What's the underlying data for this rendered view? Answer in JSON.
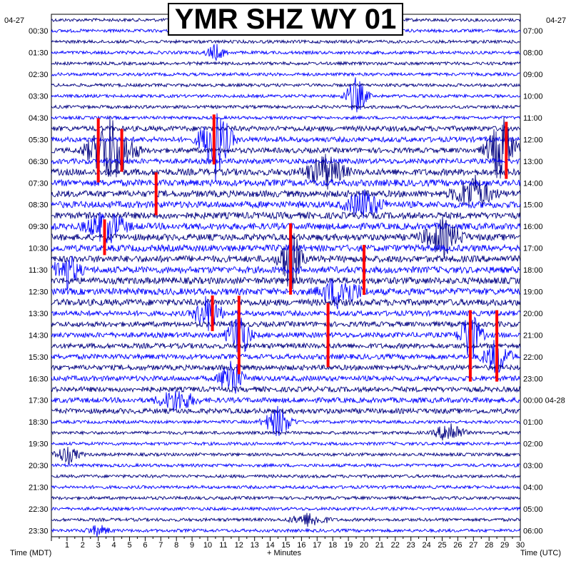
{
  "chart_data": {
    "type": "helicorder",
    "title": "YMR SHZ WY 01",
    "date_left": "04-27",
    "date_right": "04-27",
    "left_labels": [
      "00:30",
      "01:30",
      "02:30",
      "03:30",
      "04:30",
      "05:30",
      "06:30",
      "07:30",
      "08:30",
      "09:30",
      "10:30",
      "11:30",
      "12:30",
      "13:30",
      "14:30",
      "15:30",
      "16:30",
      "17:30",
      "18:30",
      "19:30",
      "20:30",
      "21:30",
      "22:30",
      "23:30"
    ],
    "right_labels": [
      "07:00",
      "08:00",
      "09:00",
      "10:00",
      "11:00",
      "12:00",
      "13:00",
      "14:00",
      "15:00",
      "16:00",
      "17:00",
      "18:00",
      "19:00",
      "20:00",
      "21:00",
      "22:00",
      "23:00",
      "00:00 04-28",
      "01:00",
      "02:00",
      "03:00",
      "04:00",
      "05:00",
      "06:00"
    ],
    "x_ticks": [
      1,
      2,
      3,
      4,
      5,
      6,
      7,
      8,
      9,
      10,
      11,
      12,
      13,
      14,
      15,
      16,
      17,
      18,
      19,
      20,
      21,
      22,
      23,
      24,
      25,
      26,
      27,
      28,
      29,
      30
    ],
    "xlabel": "+ Minutes",
    "xlabel_left": "Time (MDT)",
    "xlabel_right": "Time (UTC)",
    "xlim": [
      0,
      30
    ],
    "trace_count": 48,
    "minutes_per_trace": 30,
    "trace_colors": [
      "#000080",
      "#0000ff"
    ],
    "clip_color": "#ff0000",
    "events": [
      {
        "trace": 3,
        "minute": 10.5,
        "amp": 14,
        "dur": 1.5
      },
      {
        "trace": 7,
        "minute": 19.5,
        "amp": 30,
        "dur": 1.5
      },
      {
        "trace": 11,
        "minute": 10.5,
        "amp": 60,
        "dur": 2.0
      },
      {
        "trace": 12,
        "minute": 3.8,
        "amp": 55,
        "dur": 3.0
      },
      {
        "trace": 12,
        "minute": 28.8,
        "amp": 55,
        "dur": 2.0
      },
      {
        "trace": 14,
        "minute": 17.5,
        "amp": 30,
        "dur": 3.0
      },
      {
        "trace": 16,
        "minute": 27.0,
        "amp": 30,
        "dur": 3.0
      },
      {
        "trace": 17,
        "minute": 20.0,
        "amp": 25,
        "dur": 3.0
      },
      {
        "trace": 19,
        "minute": 3.5,
        "amp": 30,
        "dur": 3.0
      },
      {
        "trace": 20,
        "minute": 25.0,
        "amp": 30,
        "dur": 3.0
      },
      {
        "trace": 22,
        "minute": 15.3,
        "amp": 55,
        "dur": 1.5
      },
      {
        "trace": 23,
        "minute": 1.0,
        "amp": 30,
        "dur": 2.0
      },
      {
        "trace": 25,
        "minute": 18.5,
        "amp": 30,
        "dur": 3.0
      },
      {
        "trace": 27,
        "minute": 10.0,
        "amp": 30,
        "dur": 2.0
      },
      {
        "trace": 29,
        "minute": 12.0,
        "amp": 45,
        "dur": 1.5
      },
      {
        "trace": 29,
        "minute": 26.8,
        "amp": 45,
        "dur": 1.5
      },
      {
        "trace": 31,
        "minute": 28.5,
        "amp": 30,
        "dur": 2.0
      },
      {
        "trace": 33,
        "minute": 11.5,
        "amp": 40,
        "dur": 1.5
      },
      {
        "trace": 35,
        "minute": 8.0,
        "amp": 20,
        "dur": 3.0
      },
      {
        "trace": 37,
        "minute": 14.5,
        "amp": 25,
        "dur": 2.0
      },
      {
        "trace": 38,
        "minute": 25.5,
        "amp": 20,
        "dur": 2.0
      },
      {
        "trace": 40,
        "minute": 1.0,
        "amp": 15,
        "dur": 2.0
      },
      {
        "trace": 46,
        "minute": 16.5,
        "amp": 12,
        "dur": 3.0
      },
      {
        "trace": 47,
        "minute": 3.0,
        "amp": 10,
        "dur": 2.0
      }
    ],
    "clipped_segments": [
      {
        "trace": 11,
        "minute": 10.4,
        "half_height": 35
      },
      {
        "trace": 12,
        "minute": 3.0,
        "half_height": 45
      },
      {
        "trace": 12,
        "minute": 4.5,
        "half_height": 30
      },
      {
        "trace": 12,
        "minute": 29.1,
        "half_height": 40
      },
      {
        "trace": 16,
        "minute": 6.7,
        "half_height": 30
      },
      {
        "trace": 20,
        "minute": 3.4,
        "half_height": 25
      },
      {
        "trace": 22,
        "minute": 15.3,
        "half_height": 50
      },
      {
        "trace": 23,
        "minute": 20.0,
        "half_height": 35
      },
      {
        "trace": 27,
        "minute": 10.3,
        "half_height": 25
      },
      {
        "trace": 29,
        "minute": 12.0,
        "half_height": 55
      },
      {
        "trace": 29,
        "minute": 17.7,
        "half_height": 45
      },
      {
        "trace": 30,
        "minute": 26.8,
        "half_height": 50
      },
      {
        "trace": 30,
        "minute": 28.5,
        "half_height": 50
      }
    ]
  }
}
